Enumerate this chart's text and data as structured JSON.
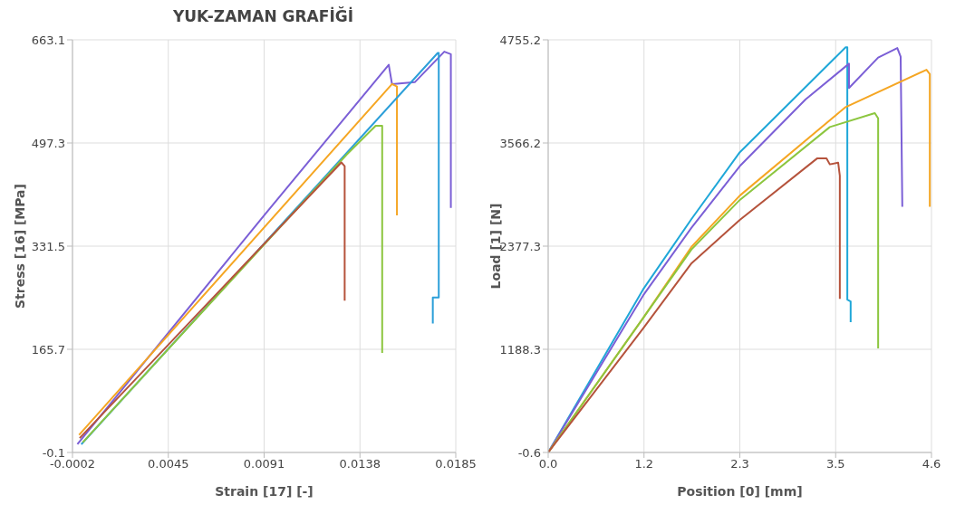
{
  "chart_data": [
    {
      "type": "line",
      "title": "YUK-ZAMAN GRAFİĞİ",
      "xlabel": "Strain [17] [-]",
      "ylabel": "Stress [16] [MPa]",
      "xlim": [
        -0.0002,
        0.0185
      ],
      "xticks": [
        {
          "value": -0.0002,
          "label": "-0.0002"
        },
        {
          "value": 0.004475,
          "label": "0.0045"
        },
        {
          "value": 0.00915,
          "label": "0.0091"
        },
        {
          "value": 0.013825,
          "label": "0.0138"
        },
        {
          "value": 0.0185,
          "label": "0.0185"
        }
      ],
      "ylim": [
        -0.1,
        663.1
      ],
      "yticks": [
        -0.1,
        165.7,
        331.5,
        497.3,
        663.1
      ],
      "grid": true,
      "legend": false,
      "marker": "none",
      "line_style": "solid",
      "series": [
        {
          "color": "#7b5fd6",
          "x": [
            4e-05,
            0.0092,
            0.01523,
            0.01539,
            0.0165,
            0.01794,
            0.01826,
            0.01826
          ],
          "values": [
            13,
            383,
            623,
            592,
            595,
            644,
            640,
            393
          ]
        },
        {
          "color": "#f5a623",
          "x": [
            0.00012,
            0.01539,
            0.01563,
            0.01563
          ],
          "values": [
            28,
            592,
            588,
            381
          ]
        },
        {
          "color": "#2c9fd9",
          "x": [
            0.00023,
            0.01762,
            0.01767,
            0.01767,
            0.01738,
            0.01738
          ],
          "values": [
            13,
            642,
            642,
            249,
            249,
            207
          ]
        },
        {
          "color": "#8cc63f",
          "x": [
            0.0003,
            0.01316,
            0.01459,
            0.01491,
            0.01491
          ],
          "values": [
            16,
            478,
            525,
            525,
            160
          ]
        },
        {
          "color": "#b5533c",
          "x": [
            0.00015,
            0.01292,
            0.01308,
            0.01308
          ],
          "values": [
            23,
            466,
            460,
            244
          ]
        }
      ]
    },
    {
      "type": "line",
      "xlabel": "Position [0] [mm]",
      "ylabel": "Load [1] [N]",
      "xlim": [
        0,
        4.6
      ],
      "xticks": [
        {
          "value": 0,
          "label": "0.0"
        },
        {
          "value": 1.15,
          "label": "1.2"
        },
        {
          "value": 2.3,
          "label": "2.3"
        },
        {
          "value": 3.45,
          "label": "3.5"
        },
        {
          "value": 4.6,
          "label": "4.6"
        }
      ],
      "ylim": [
        -0.6,
        4755.2
      ],
      "yticks": [
        -0.6,
        {
          "value": 1188.35,
          "label": "1188.3"
        },
        {
          "value": 2377.3,
          "label": "2377.3"
        },
        {
          "value": 3566.25,
          "label": "3566.2"
        },
        4755.2
      ],
      "grid": true,
      "legend": false,
      "marker": "none",
      "line_style": "solid",
      "series": [
        {
          "color": "#1fa7d8",
          "x": [
            0,
            1.14,
            1.72,
            2.3,
            3.57,
            3.59,
            3.59,
            3.63,
            3.63
          ],
          "values": [
            0,
            1880,
            2690,
            3460,
            4670,
            4670,
            1760,
            1740,
            1500
          ]
        },
        {
          "color": "#7b5fd6",
          "x": [
            0,
            1.14,
            1.72,
            2.3,
            3.09,
            3.13,
            3.61,
            3.61,
            3.96,
            4.19,
            4.23,
            4.25
          ],
          "values": [
            0,
            1810,
            2590,
            3300,
            4070,
            4100,
            4480,
            4200,
            4550,
            4660,
            4560,
            2830
          ]
        },
        {
          "color": "#f5a623",
          "x": [
            0,
            1.14,
            1.72,
            2.3,
            3.57,
            4.54,
            4.58,
            4.58
          ],
          "values": [
            0,
            1550,
            2370,
            2960,
            3980,
            4410,
            4360,
            2830
          ]
        },
        {
          "color": "#8cc63f",
          "x": [
            0,
            1.14,
            1.72,
            2.3,
            3.38,
            3.92,
            3.96,
            3.96
          ],
          "values": [
            0,
            1550,
            2340,
            2910,
            3750,
            3910,
            3850,
            1200
          ]
        },
        {
          "color": "#b5533c",
          "x": [
            0,
            1.14,
            1.72,
            2.3,
            3.23,
            3.34,
            3.38,
            3.48,
            3.5,
            3.5
          ],
          "values": [
            0,
            1430,
            2180,
            2680,
            3390,
            3390,
            3320,
            3340,
            3190,
            1770
          ]
        }
      ]
    }
  ]
}
